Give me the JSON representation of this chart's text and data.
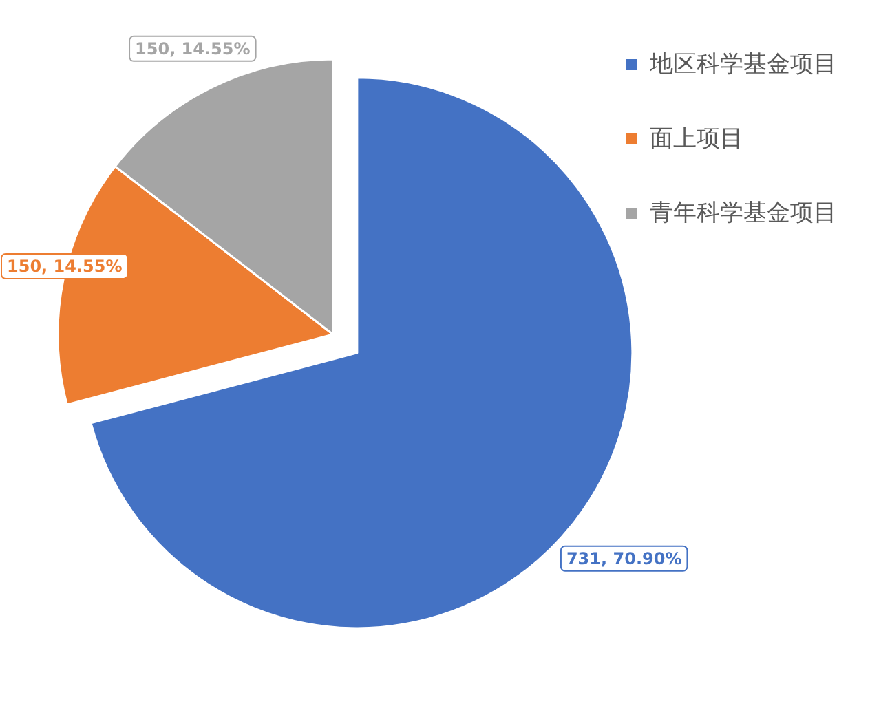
{
  "chart_data": {
    "type": "pie",
    "categories": [
      "地区科学基金项目",
      "面上项目",
      "青年科学基金项目"
    ],
    "values": [
      731,
      150,
      150
    ],
    "colors": [
      "#4472c4",
      "#ed7d31",
      "#a5a5a5"
    ],
    "value_labels": [
      "731, 70.90%",
      "150, 14.55%",
      "150, 14.55%"
    ],
    "legend": "top right"
  }
}
